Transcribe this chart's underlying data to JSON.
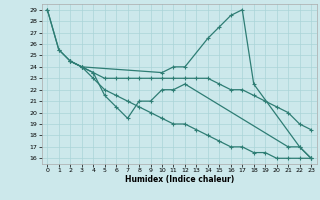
{
  "xlabel": "Humidex (Indice chaleur)",
  "bg_color": "#cce8eb",
  "grid_color": "#aad4d8",
  "line_color": "#2e7d74",
  "xlim": [
    -0.5,
    23.5
  ],
  "ylim": [
    15.5,
    29.5
  ],
  "xticks": [
    0,
    1,
    2,
    3,
    4,
    5,
    6,
    7,
    8,
    9,
    10,
    11,
    12,
    13,
    14,
    15,
    16,
    17,
    18,
    19,
    20,
    21,
    22,
    23
  ],
  "yticks": [
    16,
    17,
    18,
    19,
    20,
    21,
    22,
    23,
    24,
    25,
    26,
    27,
    28,
    29
  ],
  "lines": [
    {
      "x": [
        0,
        1,
        2,
        3,
        4,
        5,
        6,
        7,
        8,
        9,
        10,
        11,
        12,
        13,
        14,
        15,
        16,
        17,
        18,
        19,
        20,
        21,
        22,
        23
      ],
      "y": [
        29,
        25.5,
        24.5,
        24,
        23.5,
        23,
        23,
        23,
        23,
        23,
        23,
        23,
        23,
        23,
        23,
        22.5,
        22,
        22,
        21.5,
        21,
        20.5,
        20,
        19,
        18.5
      ]
    },
    {
      "x": [
        2,
        3,
        4,
        5,
        6,
        7,
        8,
        9,
        10,
        11,
        12,
        21,
        22,
        23
      ],
      "y": [
        24.5,
        24,
        23.5,
        21.5,
        20.5,
        19.5,
        21,
        21,
        22,
        22,
        22.5,
        17,
        17,
        16
      ]
    },
    {
      "x": [
        2,
        3,
        10,
        11,
        12,
        14,
        15,
        16,
        17,
        18,
        22,
        23
      ],
      "y": [
        24.5,
        24,
        23.5,
        24,
        24,
        26.5,
        27.5,
        28.5,
        29,
        22.5,
        17,
        16
      ]
    },
    {
      "x": [
        0,
        1,
        2,
        3,
        4,
        5,
        6,
        7,
        8,
        9,
        10,
        11,
        12,
        13,
        14,
        15,
        16,
        17,
        18,
        19,
        20,
        21,
        22,
        23
      ],
      "y": [
        29,
        25.5,
        24.5,
        24,
        23,
        22,
        21.5,
        21,
        20.5,
        20,
        19.5,
        19,
        19,
        18.5,
        18,
        17.5,
        17,
        17,
        16.5,
        16.5,
        16,
        16,
        16,
        16
      ]
    }
  ]
}
